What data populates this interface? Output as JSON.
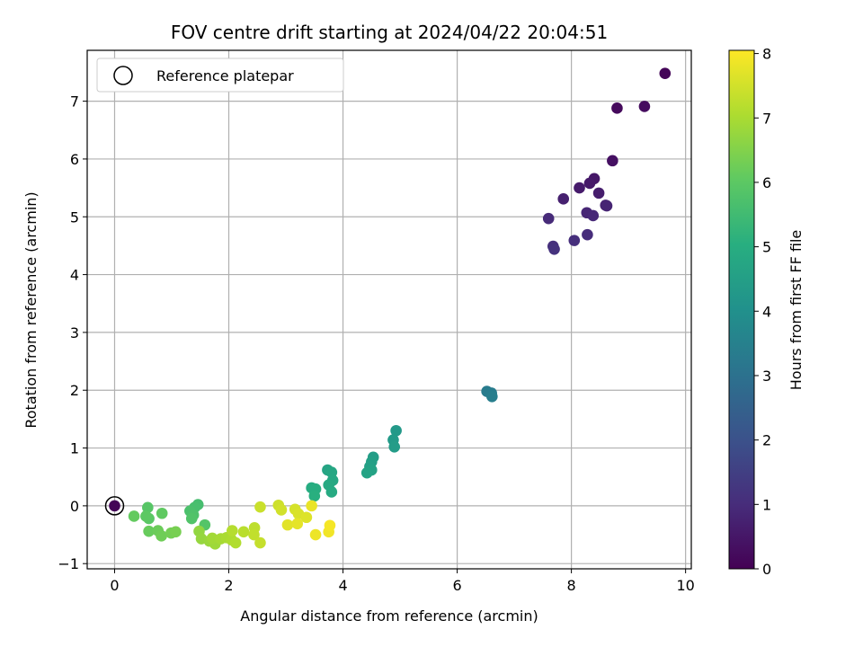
{
  "chart_data": {
    "type": "scatter",
    "title": "FOV centre drift starting at 2024/04/22 20:04:51",
    "xlabel": "Angular distance from reference (arcmin)",
    "ylabel": "Rotation from reference (arcmin)",
    "xlim": [
      -0.48,
      10.1
    ],
    "ylim": [
      -1.09,
      7.88
    ],
    "xticks": [
      0,
      2,
      4,
      6,
      8,
      10
    ],
    "yticks": [
      -1,
      0,
      1,
      2,
      3,
      4,
      5,
      6,
      7
    ],
    "grid": true,
    "legend": {
      "position": "top-left",
      "entries": [
        "Reference platepar"
      ]
    },
    "reference": {
      "name": "Reference platepar",
      "x": 0,
      "y": 0
    },
    "colorbar": {
      "label": "Hours from first FF file",
      "range": [
        0,
        8.05
      ],
      "ticks": [
        0,
        1,
        2,
        3,
        4,
        5,
        6,
        7,
        8
      ],
      "colormap": "viridis"
    },
    "points": [
      {
        "x": 9.64,
        "y": 7.48,
        "h": 0.1
      },
      {
        "x": 8.8,
        "y": 6.88,
        "h": 0.2
      },
      {
        "x": 9.28,
        "y": 6.91,
        "h": 0.25
      },
      {
        "x": 8.72,
        "y": 5.97,
        "h": 0.35
      },
      {
        "x": 8.4,
        "y": 5.66,
        "h": 0.5
      },
      {
        "x": 8.32,
        "y": 5.58,
        "h": 0.55
      },
      {
        "x": 8.14,
        "y": 5.5,
        "h": 0.6
      },
      {
        "x": 8.48,
        "y": 5.41,
        "h": 0.65
      },
      {
        "x": 7.86,
        "y": 5.31,
        "h": 0.7
      },
      {
        "x": 8.6,
        "y": 5.2,
        "h": 0.75
      },
      {
        "x": 8.62,
        "y": 5.19,
        "h": 0.8
      },
      {
        "x": 8.27,
        "y": 5.07,
        "h": 0.85
      },
      {
        "x": 8.38,
        "y": 5.02,
        "h": 0.9
      },
      {
        "x": 7.6,
        "y": 4.97,
        "h": 0.95
      },
      {
        "x": 8.28,
        "y": 4.69,
        "h": 1.0
      },
      {
        "x": 8.05,
        "y": 4.59,
        "h": 1.05
      },
      {
        "x": 7.68,
        "y": 4.49,
        "h": 1.1
      },
      {
        "x": 7.7,
        "y": 4.44,
        "h": 1.15
      },
      {
        "x": 6.52,
        "y": 1.98,
        "h": 3.3
      },
      {
        "x": 6.6,
        "y": 1.95,
        "h": 3.35
      },
      {
        "x": 6.61,
        "y": 1.89,
        "h": 3.4
      },
      {
        "x": 4.93,
        "y": 1.3,
        "h": 4.3
      },
      {
        "x": 4.88,
        "y": 1.14,
        "h": 4.35
      },
      {
        "x": 4.9,
        "y": 1.02,
        "h": 4.4
      },
      {
        "x": 4.53,
        "y": 0.84,
        "h": 4.45
      },
      {
        "x": 4.5,
        "y": 0.76,
        "h": 4.5
      },
      {
        "x": 4.47,
        "y": 0.68,
        "h": 4.55
      },
      {
        "x": 4.5,
        "y": 0.62,
        "h": 4.6
      },
      {
        "x": 4.42,
        "y": 0.57,
        "h": 4.65
      },
      {
        "x": 3.73,
        "y": 0.62,
        "h": 4.7
      },
      {
        "x": 3.8,
        "y": 0.58,
        "h": 4.75
      },
      {
        "x": 3.82,
        "y": 0.44,
        "h": 4.8
      },
      {
        "x": 3.75,
        "y": 0.36,
        "h": 4.85
      },
      {
        "x": 3.8,
        "y": 0.24,
        "h": 4.9
      },
      {
        "x": 3.45,
        "y": 0.31,
        "h": 4.95
      },
      {
        "x": 3.52,
        "y": 0.29,
        "h": 5.0
      },
      {
        "x": 3.5,
        "y": 0.17,
        "h": 5.05
      },
      {
        "x": 1.46,
        "y": 0.02,
        "h": 5.6
      },
      {
        "x": 1.4,
        "y": -0.03,
        "h": 5.65
      },
      {
        "x": 1.32,
        "y": -0.09,
        "h": 5.7
      },
      {
        "x": 1.38,
        "y": -0.16,
        "h": 5.75
      },
      {
        "x": 1.35,
        "y": -0.22,
        "h": 5.8
      },
      {
        "x": 1.58,
        "y": -0.33,
        "h": 5.85
      },
      {
        "x": 0.58,
        "y": -0.03,
        "h": 5.9
      },
      {
        "x": 0.6,
        "y": -0.22,
        "h": 5.95
      },
      {
        "x": 0.55,
        "y": -0.18,
        "h": 6.0
      },
      {
        "x": 0.83,
        "y": -0.13,
        "h": 6.05
      },
      {
        "x": 0.34,
        "y": -0.18,
        "h": 6.1
      },
      {
        "x": 0.6,
        "y": -0.44,
        "h": 6.15
      },
      {
        "x": 0.76,
        "y": -0.43,
        "h": 6.2
      },
      {
        "x": 0.82,
        "y": -0.52,
        "h": 6.25
      },
      {
        "x": 0.99,
        "y": -0.47,
        "h": 6.3
      },
      {
        "x": 1.07,
        "y": -0.45,
        "h": 6.35
      },
      {
        "x": 1.48,
        "y": -0.44,
        "h": 6.7
      },
      {
        "x": 1.52,
        "y": -0.57,
        "h": 6.75
      },
      {
        "x": 1.66,
        "y": -0.61,
        "h": 6.8
      },
      {
        "x": 1.76,
        "y": -0.66,
        "h": 6.85
      },
      {
        "x": 1.71,
        "y": -0.56,
        "h": 6.9
      },
      {
        "x": 1.86,
        "y": -0.57,
        "h": 6.95
      },
      {
        "x": 1.96,
        "y": -0.55,
        "h": 7.0
      },
      {
        "x": 2.05,
        "y": -0.59,
        "h": 7.05
      },
      {
        "x": 2.12,
        "y": -0.64,
        "h": 7.1
      },
      {
        "x": 2.06,
        "y": -0.43,
        "h": 7.15
      },
      {
        "x": 2.26,
        "y": -0.45,
        "h": 7.2
      },
      {
        "x": 2.45,
        "y": -0.38,
        "h": 7.25
      },
      {
        "x": 2.44,
        "y": -0.5,
        "h": 7.3
      },
      {
        "x": 2.55,
        "y": -0.64,
        "h": 7.35
      },
      {
        "x": 2.55,
        "y": -0.02,
        "h": 7.4
      },
      {
        "x": 2.87,
        "y": 0.01,
        "h": 7.45
      },
      {
        "x": 2.92,
        "y": -0.07,
        "h": 7.5
      },
      {
        "x": 3.16,
        "y": -0.06,
        "h": 7.55
      },
      {
        "x": 3.22,
        "y": -0.14,
        "h": 7.6
      },
      {
        "x": 3.36,
        "y": -0.2,
        "h": 7.65
      },
      {
        "x": 3.03,
        "y": -0.33,
        "h": 7.7
      },
      {
        "x": 3.2,
        "y": -0.31,
        "h": 7.75
      },
      {
        "x": 3.45,
        "y": 0.0,
        "h": 7.8
      },
      {
        "x": 3.52,
        "y": -0.5,
        "h": 7.85
      },
      {
        "x": 3.75,
        "y": -0.45,
        "h": 7.9
      },
      {
        "x": 3.77,
        "y": -0.34,
        "h": 7.95
      }
    ]
  }
}
